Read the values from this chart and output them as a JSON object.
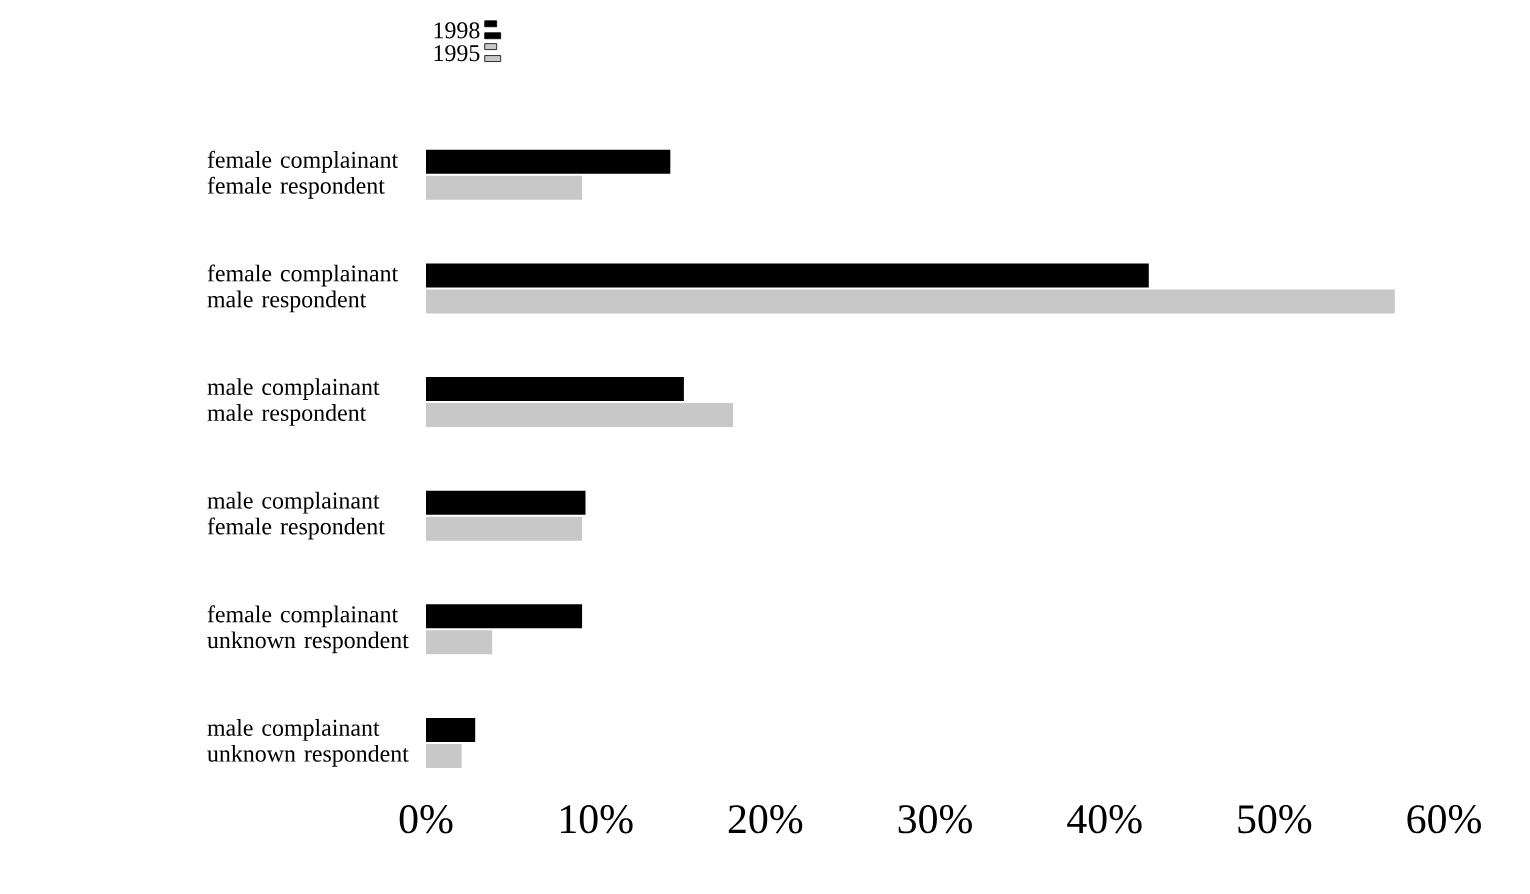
{
  "chart_data": {
    "type": "bar",
    "orientation": "horizontal",
    "categories": [
      "female complainant female respondent",
      "female complainant male respondent",
      "male complainant male respondent",
      "male complainant female respondent",
      "female complainant unknown respondent",
      "male complainant unknown respondent"
    ],
    "series": [
      {
        "name": "1998",
        "color": "#000000",
        "values": [
          14.4,
          42.6,
          15.2,
          9.4,
          9.2,
          2.9
        ]
      },
      {
        "name": "1995",
        "color": "#c8c8c8",
        "values": [
          9.2,
          57.1,
          18.1,
          9.2,
          3.9,
          2.1
        ]
      }
    ],
    "xlim": [
      0,
      60
    ],
    "xticks": [
      {
        "value": 0,
        "label": "0%"
      },
      {
        "value": 10,
        "label": "10%"
      },
      {
        "value": 20,
        "label": "20%"
      },
      {
        "value": 30,
        "label": "30%"
      },
      {
        "value": 40,
        "label": "40%"
      },
      {
        "value": 50,
        "label": "50%"
      },
      {
        "value": 60,
        "label": "60%"
      }
    ],
    "legend": "top left",
    "grid": false
  }
}
